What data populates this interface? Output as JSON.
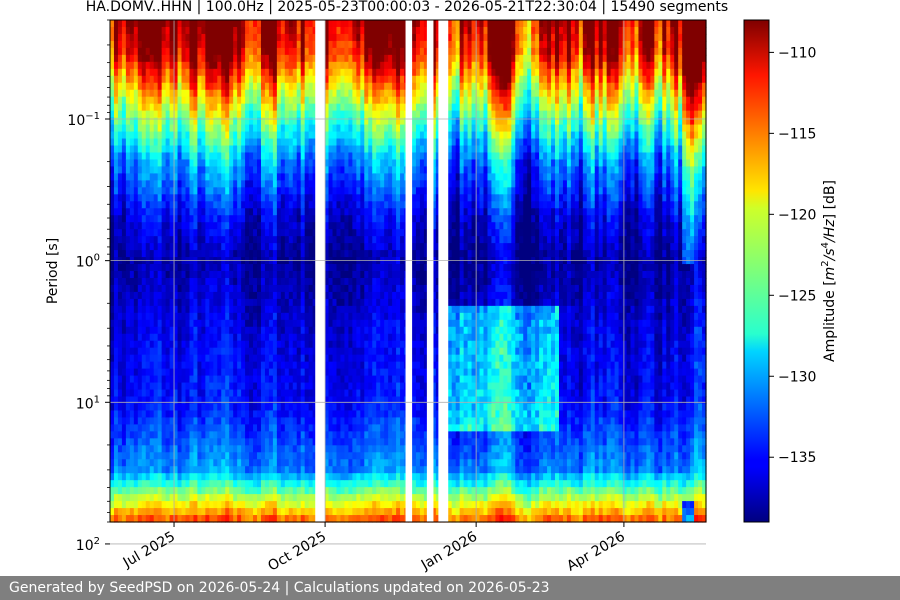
{
  "chart_data": {
    "type": "heatmap",
    "title": "HA.DOMV..HHN | 100.0Hz | 2025-05-23T00:00:03 - 2026-05-21T22:30:04 | 15490 segments",
    "ylabel": "Period [s]",
    "y_scale": "log",
    "y_range_s": [
      0.02,
      70
    ],
    "y_ticks": [
      {
        "value": 0.1,
        "base": "10",
        "exp": "−1"
      },
      {
        "value": 1,
        "base": "10",
        "exp": "0"
      },
      {
        "value": 10,
        "base": "10",
        "exp": "1"
      },
      {
        "value": 100,
        "base": "10",
        "exp": "2"
      }
    ],
    "x_range": [
      "2025-05-23",
      "2026-05-21"
    ],
    "x_ticks": [
      {
        "date": "2025-07-01",
        "label": "Jul 2025"
      },
      {
        "date": "2025-10-01",
        "label": "Oct 2025"
      },
      {
        "date": "2026-01-01",
        "label": "Jan 2026"
      },
      {
        "date": "2026-04-01",
        "label": "Apr 2026"
      }
    ],
    "grid": true,
    "colormap": "jet",
    "colorbar": {
      "label": "Amplitude [m²/s⁴/Hz] [dB]",
      "min": -139,
      "max": -108,
      "ticks": [
        -110,
        -115,
        -120,
        -125,
        -130,
        -135
      ],
      "tick_labels": [
        "−110",
        "−115",
        "−120",
        "−125",
        "−130",
        "−135"
      ]
    },
    "data_gaps": [
      [
        "2025-09-25",
        "2025-10-01"
      ],
      [
        "2025-11-19",
        "2025-11-23"
      ],
      [
        "2025-12-02",
        "2025-12-06"
      ],
      [
        "2025-12-09",
        "2025-12-15"
      ]
    ],
    "anomaly_period": [
      "2026-05-06",
      "2026-05-13"
    ],
    "ppsd_profile": [
      {
        "period_s": 0.02,
        "db": -108
      },
      {
        "period_s": 0.035,
        "db": -111
      },
      {
        "period_s": 0.06,
        "db": -118
      },
      {
        "period_s": 0.1,
        "db": -124
      },
      {
        "period_s": 0.2,
        "db": -131
      },
      {
        "period_s": 0.5,
        "db": -136
      },
      {
        "period_s": 1,
        "db": -138
      },
      {
        "period_s": 3,
        "db": -136
      },
      {
        "period_s": 10,
        "db": -135
      },
      {
        "period_s": 30,
        "db": -131
      },
      {
        "period_s": 70,
        "db": -114
      }
    ]
  },
  "footer": {
    "text": "Generated by SeedPSD on 2026-05-24 | Calculations updated on 2026-05-23"
  }
}
